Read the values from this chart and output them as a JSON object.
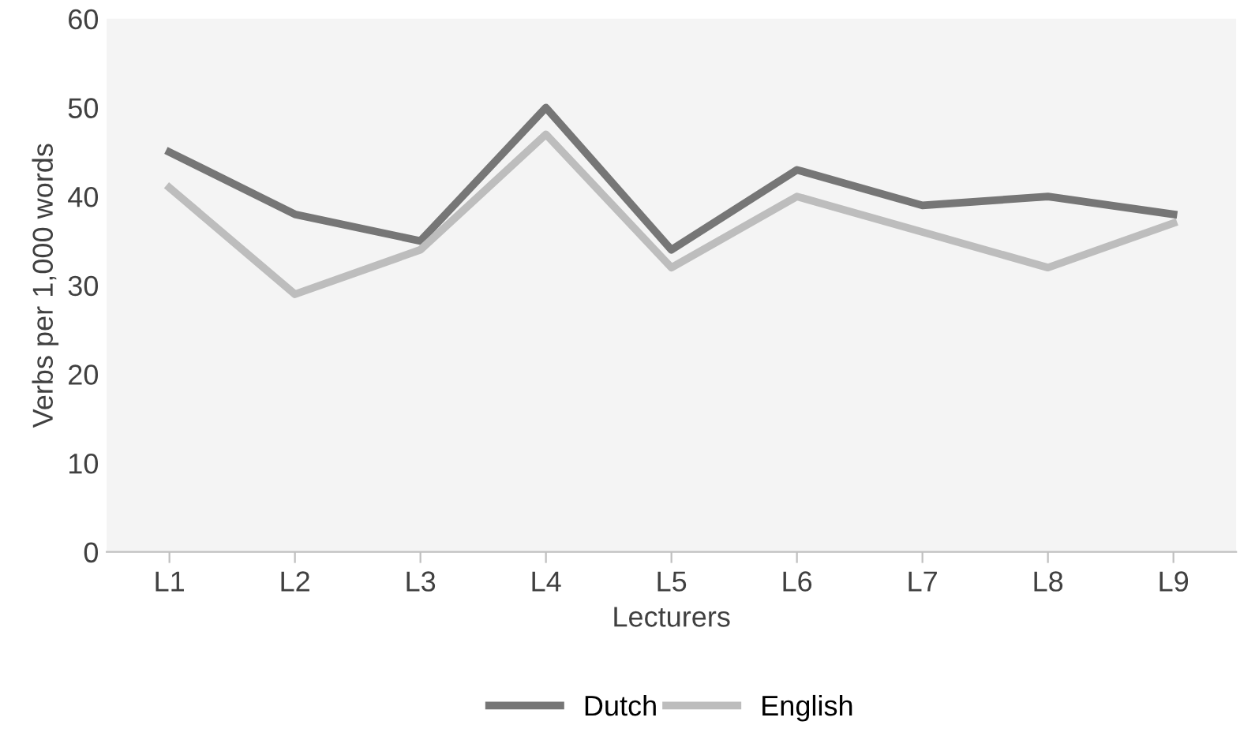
{
  "chart_data": {
    "type": "line",
    "xlabel": "Lecturers",
    "ylabel": "Verbs per 1,000 words",
    "categories": [
      "L1",
      "L2",
      "L3",
      "L4",
      "L5",
      "L6",
      "L7",
      "L8",
      "L9"
    ],
    "series": [
      {
        "name": "Dutch",
        "color": "#767676",
        "values": [
          45,
          38,
          35,
          50,
          34,
          43,
          39,
          40,
          38
        ]
      },
      {
        "name": "English",
        "color": "#bdbdbd",
        "values": [
          41,
          29,
          34,
          47,
          32,
          40,
          36,
          32,
          37
        ]
      }
    ],
    "ylim": [
      0,
      60
    ],
    "yticks": [
      0,
      10,
      20,
      30,
      40,
      50,
      60
    ],
    "grid": false,
    "legend": "bottom",
    "marker": "none",
    "line_style": "solid"
  }
}
